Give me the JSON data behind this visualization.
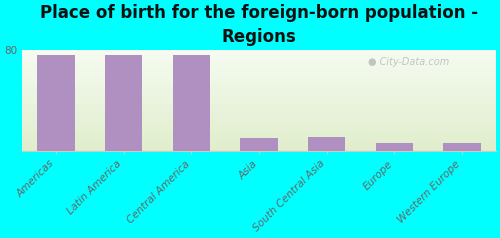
{
  "title": "Place of birth for the foreign-born population -\nRegions",
  "categories": [
    "Americas",
    "Latin America",
    "Central America",
    "Asia",
    "South Central Asia",
    "Europe",
    "Western Europe"
  ],
  "values": [
    76,
    76,
    76,
    10,
    11,
    6,
    6
  ],
  "bar_color": "#b090c0",
  "background_color": "#00ffff",
  "plot_bg_color_top": "#f2f8e8",
  "plot_bg_color_bottom": "#e4f0d4",
  "ylim": [
    0,
    80
  ],
  "yticks": [
    0,
    80
  ],
  "watermark": "City-Data.com",
  "title_fontsize": 12,
  "tick_fontsize": 7.5,
  "watermark_color": "#bbbbbb",
  "spine_color": "#cccccc",
  "label_color": "#666666"
}
